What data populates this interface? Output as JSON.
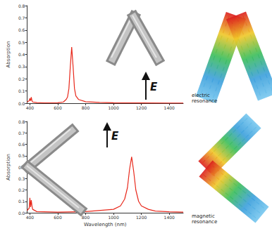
{
  "chart_data": [
    {
      "type": "line",
      "y_label": "Absorption",
      "color": "#e8291c",
      "x": [
        380,
        395,
        400,
        405,
        410,
        415,
        420,
        450,
        500,
        600,
        640,
        660,
        670,
        680,
        690,
        700,
        710,
        720,
        730,
        750,
        800,
        900,
        1000,
        1200,
        1400,
        1500
      ],
      "values": [
        0.01,
        0.02,
        0.04,
        0.02,
        0.05,
        0.02,
        0.01,
        0.005,
        0.003,
        0.004,
        0.01,
        0.03,
        0.05,
        0.12,
        0.3,
        0.46,
        0.3,
        0.12,
        0.06,
        0.03,
        0.012,
        0.006,
        0.004,
        0.002,
        0.001,
        0.001
      ],
      "xlim": [
        380,
        1500
      ],
      "xticks": [
        400,
        600,
        800,
        1000,
        1200,
        1400
      ],
      "ylim": [
        0,
        0.8
      ],
      "yticks": [
        {
          "value": 0,
          "label": "0.0"
        },
        0.1,
        0.2,
        0.3,
        0.4,
        0.5,
        0.6,
        0.7,
        0.8
      ],
      "grid": false,
      "annotations": [
        "E"
      ]
    },
    {
      "type": "line",
      "x_label": "Wavelength (nm)",
      "y_label": "Absorption",
      "color": "#e8291c",
      "x": [
        380,
        395,
        400,
        405,
        410,
        415,
        420,
        450,
        600,
        800,
        1000,
        1050,
        1080,
        1100,
        1115,
        1130,
        1145,
        1160,
        1180,
        1200,
        1250,
        1300,
        1400,
        1500
      ],
      "values": [
        0.02,
        0.04,
        0.13,
        0.05,
        0.11,
        0.06,
        0.03,
        0.01,
        0.005,
        0.01,
        0.03,
        0.06,
        0.12,
        0.22,
        0.38,
        0.49,
        0.36,
        0.2,
        0.1,
        0.06,
        0.03,
        0.015,
        0.008,
        0.005
      ],
      "xlim": [
        380,
        1500
      ],
      "xticks": [
        400,
        600,
        800,
        1000,
        1200,
        1400
      ],
      "ylim": [
        0,
        0.8
      ],
      "yticks": [
        {
          "value": 0,
          "label": "0.0"
        },
        0.1,
        0.2,
        0.3,
        0.4,
        0.5,
        0.6,
        0.7,
        0.8
      ],
      "grid": false,
      "annotations": [
        "E"
      ]
    }
  ],
  "images": [
    {
      "label": "electric resonance"
    },
    {
      "label": "magnetic resonance"
    }
  ]
}
